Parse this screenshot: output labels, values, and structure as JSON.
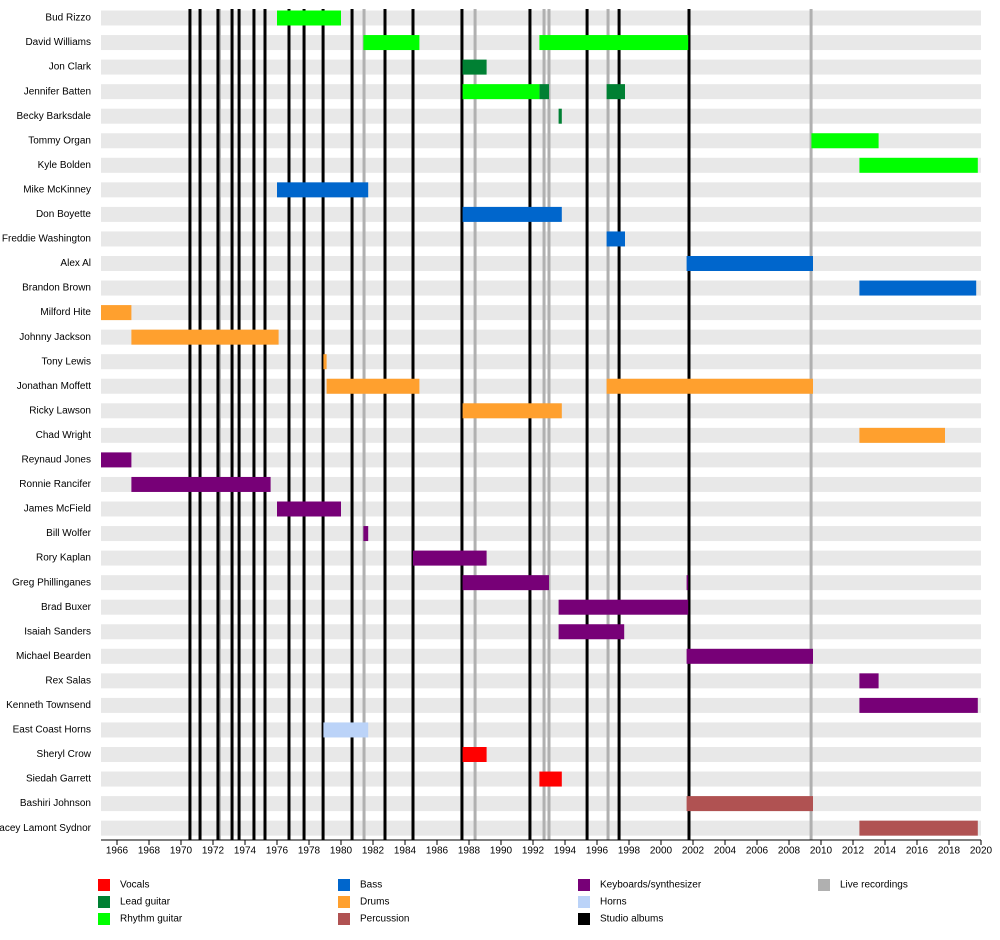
{
  "chart_data": {
    "type": "timeline",
    "categories": [
      "Bud Rizzo",
      "David Williams",
      "Jon Clark",
      "Jennifer Batten",
      "Becky Barksdale",
      "Tommy Organ",
      "Kyle  Bolden",
      "Mike McKinney",
      "Don Boyette",
      "Freddie Washington",
      "Alex Al",
      "Brandon Brown",
      "Milford Hite",
      "Johnny Jackson",
      "Tony Lewis",
      "Jonathan Moffett",
      "Ricky Lawson",
      "Chad Wright",
      "Reynaud Jones",
      "Ronnie Rancifer",
      "James McField",
      "Bill Wolfer",
      "Rory Kaplan",
      "Greg Phillinganes",
      "Brad Buxer",
      "Isaiah Sanders",
      "Michael Bearden",
      "Rex Salas",
      "Kenneth Townsend",
      "East Coast Horns",
      "Sheryl Crow",
      "Siedah Garrett",
      "Bashiri Johnson",
      "Stacey Lamont Sydnor"
    ],
    "xlim": [
      1965,
      2020
    ],
    "xticks": [
      1966,
      1968,
      1970,
      1972,
      1974,
      1976,
      1978,
      1980,
      1982,
      1984,
      1986,
      1988,
      1990,
      1992,
      1994,
      1996,
      1998,
      2000,
      2002,
      2004,
      2006,
      2008,
      2010,
      2012,
      2014,
      2016,
      2018,
      2020
    ],
    "series": [
      {
        "name": "Vocals",
        "color": "#ff0000",
        "bars": [
          {
            "member": "Sheryl Crow",
            "start": 1987.6,
            "end": 1989.1
          },
          {
            "member": "Siedah Garrett",
            "start": 1992.4,
            "end": 1993.8
          }
        ]
      },
      {
        "name": "Lead guitar",
        "color": "#008033",
        "bars": [
          {
            "member": "Jon Clark",
            "start": 1987.6,
            "end": 1989.1
          },
          {
            "member": "Jennifer Batten",
            "start": 1992.4,
            "end": 1993.0
          },
          {
            "member": "Jennifer Batten",
            "start": 1996.6,
            "end": 1997.75
          },
          {
            "member": "Becky Barksdale",
            "start": 1993.6,
            "end": 1993.8
          }
        ]
      },
      {
        "name": "Rhythm guitar",
        "color": "#00ff00",
        "bars": [
          {
            "member": "Bud Rizzo",
            "start": 1976.0,
            "end": 1980.0
          },
          {
            "member": "David Williams",
            "start": 1981.4,
            "end": 1984.9
          },
          {
            "member": "David Williams",
            "start": 1992.4,
            "end": 2001.7
          },
          {
            "member": "Jennifer Batten",
            "start": 1987.6,
            "end": 1992.4
          },
          {
            "member": "Tommy Organ",
            "start": 2009.4,
            "end": 2013.6
          },
          {
            "member": "Kyle  Bolden",
            "start": 2012.4,
            "end": 2019.8
          }
        ]
      },
      {
        "name": "Bass",
        "color": "#0066cc",
        "bars": [
          {
            "member": "Mike McKinney",
            "start": 1976.0,
            "end": 1981.7
          },
          {
            "member": "Don Boyette",
            "start": 1987.6,
            "end": 1993.8
          },
          {
            "member": "Freddie Washington",
            "start": 1996.6,
            "end": 1997.75
          },
          {
            "member": "Alex Al",
            "start": 2001.6,
            "end": 2009.5
          },
          {
            "member": "Brandon Brown",
            "start": 2012.4,
            "end": 2019.7
          }
        ]
      },
      {
        "name": "Drums",
        "color": "#ffa02e",
        "bars": [
          {
            "member": "Milford Hite",
            "start": 1965.0,
            "end": 1966.9
          },
          {
            "member": "Johnny Jackson",
            "start": 1966.9,
            "end": 1976.1
          },
          {
            "member": "Tony Lewis",
            "start": 1978.9,
            "end": 1979.1
          },
          {
            "member": "Jonathan Moffett",
            "start": 1979.1,
            "end": 1984.9
          },
          {
            "member": "Jonathan Moffett",
            "start": 1996.6,
            "end": 2009.5
          },
          {
            "member": "Ricky Lawson",
            "start": 1987.6,
            "end": 1993.8
          },
          {
            "member": "Chad Wright",
            "start": 2012.4,
            "end": 2017.75
          }
        ]
      },
      {
        "name": "Percussion",
        "color": "#b05252",
        "bars": [
          {
            "member": "Bashiri Johnson",
            "start": 2001.6,
            "end": 2009.5
          },
          {
            "member": "Stacey Lamont Sydnor",
            "start": 2012.4,
            "end": 2019.8
          }
        ]
      },
      {
        "name": "Keyboards/synthesizer",
        "color": "#770077",
        "bars": [
          {
            "member": "Reynaud Jones",
            "start": 1965.0,
            "end": 1966.9
          },
          {
            "member": "Ronnie Rancifer",
            "start": 1966.9,
            "end": 1975.6
          },
          {
            "member": "James McField",
            "start": 1976.0,
            "end": 1980.0
          },
          {
            "member": "Bill Wolfer",
            "start": 1981.4,
            "end": 1981.7
          },
          {
            "member": "Rory Kaplan",
            "start": 1984.5,
            "end": 1989.1
          },
          {
            "member": "Greg Phillinganes",
            "start": 1987.6,
            "end": 1993.0
          },
          {
            "member": "Greg Phillinganes",
            "start": 2001.6,
            "end": 2001.7
          },
          {
            "member": "Brad Buxer",
            "start": 1993.6,
            "end": 2001.7
          },
          {
            "member": "Isaiah Sanders",
            "start": 1993.6,
            "end": 1997.7
          },
          {
            "member": "Michael Bearden",
            "start": 2001.6,
            "end": 2009.5
          },
          {
            "member": "Rex Salas",
            "start": 2012.4,
            "end": 2013.6
          },
          {
            "member": "Kenneth Townsend",
            "start": 2012.4,
            "end": 2019.8
          }
        ]
      },
      {
        "name": "Horns",
        "color": "#bbd3f8",
        "bars": [
          {
            "member": "East Coast Horns",
            "start": 1978.9,
            "end": 1981.7
          }
        ]
      },
      {
        "name": "Studio albums",
        "color": "#000000",
        "lines": [
          1970.56,
          1971.19,
          1972.31,
          1973.19,
          1973.63,
          1974.56,
          1975.25,
          1976.75,
          1977.69,
          1978.88,
          1980.69,
          1982.75,
          1984.5,
          1987.56,
          1991.81,
          1995.38,
          1997.38,
          2001.75
        ]
      },
      {
        "name": "Live recordings",
        "color": "#b0b0b0",
        "lines": [
          1972.4,
          1981.44,
          1988.38,
          1992.69,
          1993.0,
          1996.69,
          2009.38
        ]
      }
    ]
  }
}
